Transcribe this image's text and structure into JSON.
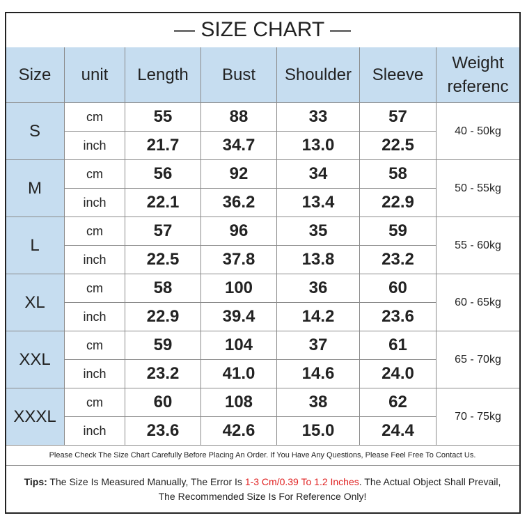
{
  "title": "— SIZE CHART —",
  "table": {
    "header": [
      "Size",
      "unit",
      "Length",
      "Bust",
      "Shoulder",
      "Sleeve",
      "Weight referenc"
    ],
    "rows": [
      {
        "size": "S",
        "weight": "40 - 50kg",
        "cm": [
          "cm",
          "55",
          "88",
          "33",
          "57"
        ],
        "inch": [
          "inch",
          "21.7",
          "34.7",
          "13.0",
          "22.5"
        ]
      },
      {
        "size": "M",
        "weight": "50 - 55kg",
        "cm": [
          "cm",
          "56",
          "92",
          "34",
          "58"
        ],
        "inch": [
          "inch",
          "22.1",
          "36.2",
          "13.4",
          "22.9"
        ]
      },
      {
        "size": "L",
        "weight": "55 - 60kg",
        "cm": [
          "cm",
          "57",
          "96",
          "35",
          "59"
        ],
        "inch": [
          "inch",
          "22.5",
          "37.8",
          "13.8",
          "23.2"
        ]
      },
      {
        "size": "XL",
        "weight": "60 - 65kg",
        "cm": [
          "cm",
          "58",
          "100",
          "36",
          "60"
        ],
        "inch": [
          "inch",
          "22.9",
          "39.4",
          "14.2",
          "23.6"
        ]
      },
      {
        "size": "XXL",
        "weight": "65 - 70kg",
        "cm": [
          "cm",
          "59",
          "104",
          "37",
          "61"
        ],
        "inch": [
          "inch",
          "23.2",
          "41.0",
          "14.6",
          "24.0"
        ]
      },
      {
        "size": "XXXL",
        "weight": "70 - 75kg",
        "cm": [
          "cm",
          "60",
          "108",
          "38",
          "62"
        ],
        "inch": [
          "inch",
          "23.6",
          "42.6",
          "15.0",
          "24.4"
        ]
      }
    ]
  },
  "note": "Please Check The Size Chart Carefully Before Placing An Order. If You Have Any Questions, Please Feel Free To Contact Us.",
  "tips": {
    "label": "Tips:",
    "text_before": " The Size Is Measured Manually, The Error Is ",
    "highlight": "1-3 Cm/0.39 To 1.2 Inches",
    "text_after": ". The Actual Object Shall Prevail,",
    "line2": "The Recommended Size Is For Reference Only!"
  }
}
